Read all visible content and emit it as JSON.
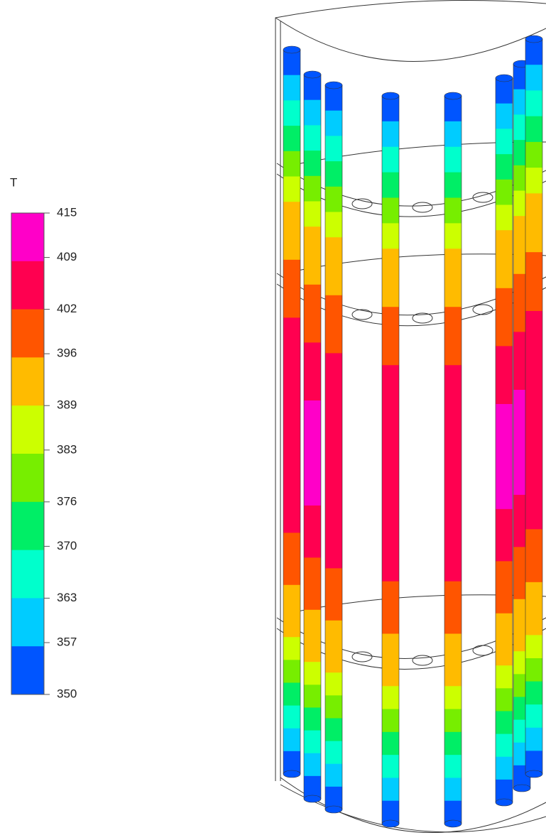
{
  "legend": {
    "title": "T",
    "ticks": [
      415,
      409,
      402,
      396,
      389,
      383,
      376,
      370,
      363,
      357,
      350
    ],
    "colors": [
      "#ff00c8",
      "#ff0050",
      "#ff5500",
      "#ffbb00",
      "#ccff00",
      "#77ee00",
      "#00ee66",
      "#00ffcc",
      "#00ccff",
      "#0055ff"
    ]
  }
}
